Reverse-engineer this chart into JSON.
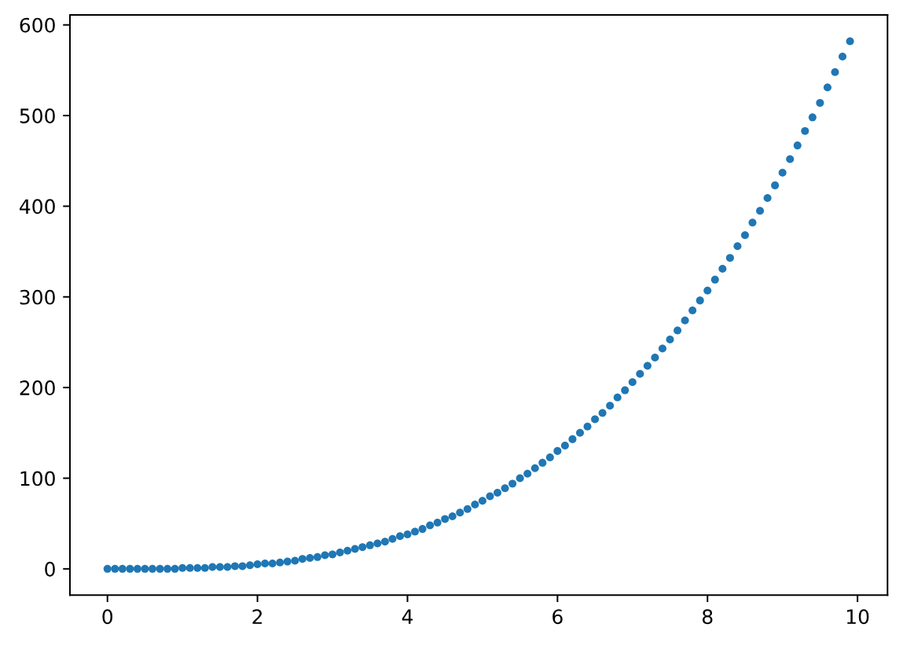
{
  "chart_data": {
    "type": "scatter",
    "x": [
      0,
      0.1,
      0.2,
      0.3,
      0.4,
      0.5,
      0.6,
      0.7,
      0.8,
      0.9,
      1,
      1.1,
      1.2,
      1.3,
      1.4,
      1.5,
      1.6,
      1.7,
      1.8,
      1.9,
      2,
      2.1,
      2.2,
      2.3,
      2.4,
      2.5,
      2.6,
      2.7,
      2.8,
      2.9,
      3,
      3.1,
      3.2,
      3.3,
      3.4,
      3.5,
      3.6,
      3.7,
      3.8,
      3.9,
      4,
      4.1,
      4.2,
      4.3,
      4.4,
      4.5,
      4.6,
      4.7,
      4.8,
      4.9,
      5,
      5.1,
      5.2,
      5.3,
      5.4,
      5.5,
      5.6,
      5.7,
      5.8,
      5.9,
      6,
      6.1,
      6.2,
      6.3,
      6.4,
      6.5,
      6.6,
      6.7,
      6.8,
      6.9,
      7,
      7.1,
      7.2,
      7.3,
      7.4,
      7.5,
      7.6,
      7.7,
      7.8,
      7.9,
      8,
      8.1,
      8.2,
      8.3,
      8.4,
      8.5,
      8.6,
      8.7,
      8.8,
      8.9,
      9,
      9.1,
      9.2,
      9.3,
      9.4,
      9.5,
      9.6,
      9.7,
      9.8,
      9.9
    ],
    "values": [
      0,
      0,
      0,
      0,
      0,
      0,
      0,
      0,
      0,
      0,
      1,
      1,
      1,
      1,
      2,
      2,
      2,
      3,
      3,
      4,
      5,
      6,
      6,
      7,
      8,
      9,
      11,
      12,
      13,
      15,
      16,
      18,
      20,
      22,
      24,
      26,
      28,
      30,
      33,
      36,
      38,
      41,
      44,
      48,
      51,
      55,
      58,
      62,
      66,
      71,
      75,
      80,
      84,
      89,
      94,
      100,
      105,
      111,
      117,
      123,
      130,
      136,
      143,
      150,
      157,
      165,
      172,
      180,
      189,
      197,
      206,
      215,
      224,
      233,
      243,
      253,
      263,
      274,
      285,
      296,
      307,
      319,
      331,
      343,
      356,
      368,
      382,
      395,
      409,
      423,
      437,
      452,
      467,
      483,
      498,
      514,
      531,
      548,
      565,
      582
    ],
    "color": "#1f77b4",
    "marker": "circle",
    "xlim": [
      -0.5,
      10.4
    ],
    "ylim": [
      -29,
      611
    ],
    "xticks": [
      0,
      2,
      4,
      6,
      8,
      10
    ],
    "yticks": [
      0,
      100,
      200,
      300,
      400,
      500,
      600
    ],
    "grid": false
  }
}
